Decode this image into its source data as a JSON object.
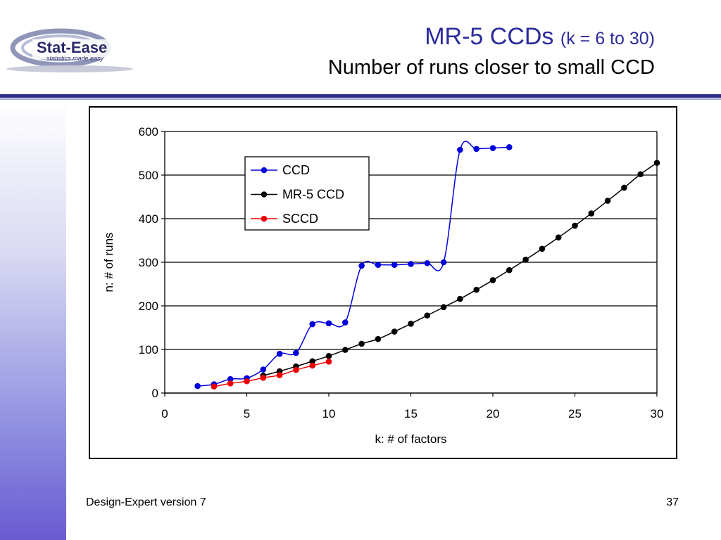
{
  "logo": {
    "brand": "Stat-Ease",
    "tagline": "statistics made easy"
  },
  "slide": {
    "title_main": "MR-5 CCDs",
    "title_sub": "(k = 6 to 30)",
    "subtitle": "Number of runs closer to small CCD",
    "footer_left": "Design-Expert version 7",
    "page_number": "37"
  },
  "colors": {
    "title": "#2b2b9b",
    "ccd": "#0000dd",
    "mr5": "#000000",
    "sccd": "#ee0000"
  },
  "chart_data": {
    "type": "line",
    "xlabel": "k: # of factors",
    "ylabel": "n: # of runs",
    "xlim": [
      0,
      30
    ],
    "ylim": [
      0,
      600
    ],
    "xticks": [
      0,
      5,
      10,
      15,
      20,
      25,
      30
    ],
    "yticks": [
      0,
      100,
      200,
      300,
      400,
      500,
      600
    ],
    "grid": "horizontal",
    "legend_position": "top-left inside plot",
    "series": [
      {
        "name": "CCD",
        "color": "#0000dd",
        "x": [
          2,
          3,
          4,
          5,
          6,
          7,
          8,
          9,
          10,
          11,
          12,
          13,
          14,
          15,
          16,
          17,
          18,
          19,
          20,
          21
        ],
        "y": [
          16,
          20,
          32,
          34,
          54,
          90,
          92,
          158,
          160,
          162,
          292,
          294,
          294,
          296,
          298,
          300,
          558,
          560,
          562,
          564
        ]
      },
      {
        "name": "MR-5 CCD",
        "color": "#000000",
        "x": [
          6,
          7,
          8,
          9,
          10,
          11,
          12,
          13,
          14,
          15,
          16,
          17,
          18,
          19,
          20,
          21,
          22,
          23,
          24,
          25,
          26,
          27,
          28,
          29,
          30
        ],
        "y": [
          40,
          50,
          61,
          73,
          85,
          99,
          113,
          124,
          141,
          159,
          178,
          197,
          216,
          237,
          259,
          282,
          306,
          331,
          357,
          384,
          412,
          441,
          471,
          502,
          528
        ]
      },
      {
        "name": "SCCD",
        "color": "#ee0000",
        "x": [
          3,
          4,
          5,
          6,
          7,
          8,
          9,
          10
        ],
        "y": [
          15,
          22,
          27,
          35,
          41,
          53,
          63,
          72
        ]
      }
    ]
  }
}
